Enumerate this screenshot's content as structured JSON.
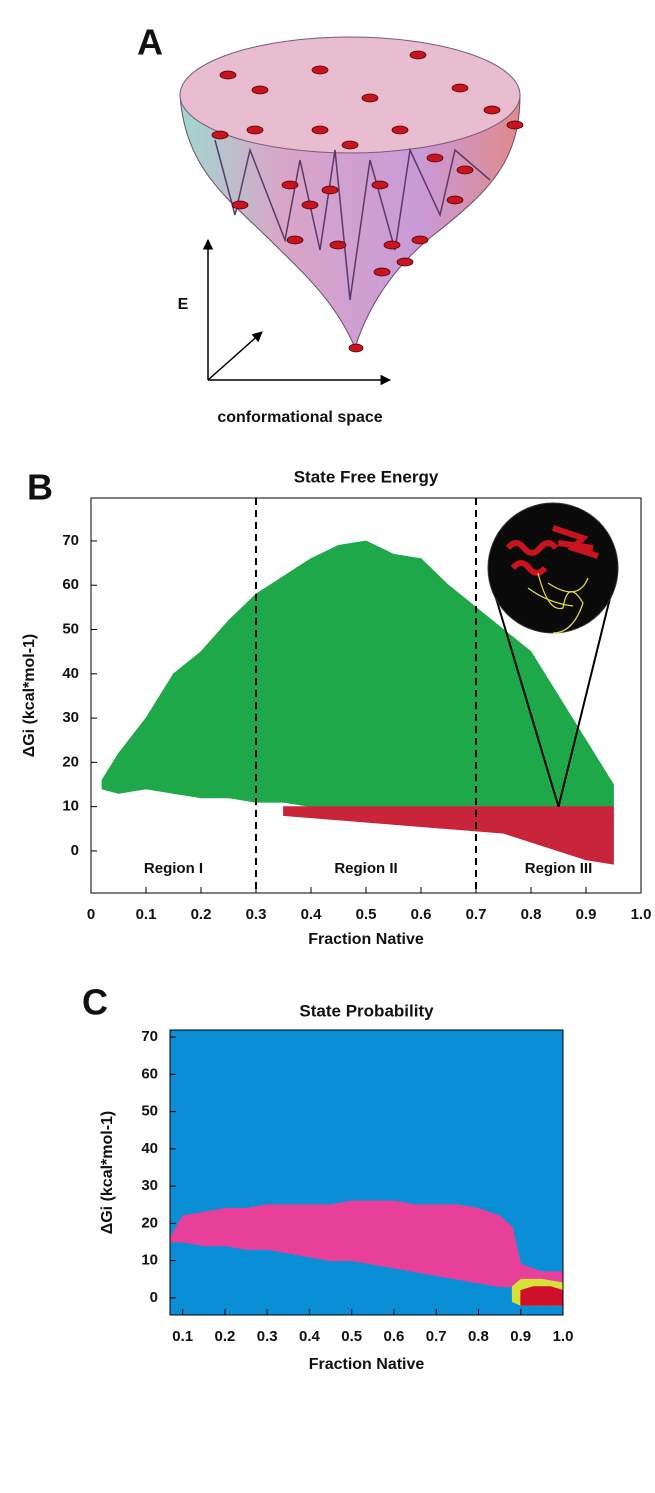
{
  "panel_a": {
    "label": "A",
    "y_label": "E",
    "x_label": "conformational space"
  },
  "chart_data": [
    {
      "type": "range",
      "panel": "B",
      "title": "State Free Energy",
      "xlabel": "Fraction Native",
      "ylabel": "ΔGi (kcal*mol-1)",
      "xlim": [
        0,
        1
      ],
      "ylim": [
        -9.5,
        79.7
      ],
      "xticks": [
        0,
        0.1,
        0.2,
        0.3,
        0.4,
        0.5,
        0.6,
        0.7,
        0.8,
        0.9,
        {
          "value": 1,
          "label": "1.0"
        }
      ],
      "yticks": [
        0,
        10,
        20,
        30,
        40,
        50,
        60,
        70
      ],
      "vlines": [
        0.3,
        0.7
      ],
      "regions": [
        "Region I",
        "Region II",
        "Region III"
      ],
      "inset_target": {
        "x": 0.85,
        "y": 10
      },
      "series": [
        {
          "color": "#1fa84a",
          "x": [
            0.02,
            0.05,
            0.1,
            0.15,
            0.2,
            0.25,
            0.3,
            0.35,
            0.4,
            0.45,
            0.5,
            0.55,
            0.6,
            0.65,
            0.7,
            0.75,
            0.8,
            0.85,
            0.9,
            0.95
          ],
          "high": [
            16,
            22,
            30,
            40,
            45,
            52,
            58,
            62,
            66,
            69,
            70,
            67,
            66,
            60,
            55,
            50,
            45,
            35,
            25,
            15
          ],
          "low": [
            14,
            13,
            14,
            13,
            12,
            12,
            11,
            11,
            10,
            10,
            10,
            10,
            10,
            10,
            10,
            10,
            10,
            10,
            10,
            10
          ]
        },
        {
          "color": "#c8243a",
          "x": [
            0.35,
            0.45,
            0.55,
            0.65,
            0.75,
            0.8,
            0.85,
            0.9,
            0.95
          ],
          "high": [
            10,
            10,
            10,
            10,
            10,
            10,
            10,
            10,
            10
          ],
          "low": [
            8,
            7,
            6,
            5,
            4,
            2,
            0,
            -2,
            -3
          ]
        }
      ]
    },
    {
      "type": "range",
      "panel": "C",
      "title": "State Probability",
      "xlabel": "Fraction Native",
      "ylabel": "ΔGi (kcal*mol-1)",
      "xlim": [
        0.07,
        1
      ],
      "ylim": [
        -4.6,
        71.9
      ],
      "background": "#0a8fd6",
      "xticks": [
        0.1,
        0.2,
        0.3,
        0.4,
        0.5,
        0.6,
        0.7,
        0.8,
        0.9,
        {
          "value": 1,
          "label": "1.0"
        }
      ],
      "yticks": [
        0,
        10,
        20,
        30,
        40,
        50,
        60,
        70
      ],
      "series": [
        {
          "color": "#e8409a",
          "x": [
            0.07,
            0.1,
            0.15,
            0.2,
            0.25,
            0.3,
            0.35,
            0.4,
            0.45,
            0.5,
            0.55,
            0.6,
            0.65,
            0.7,
            0.75,
            0.8,
            0.85,
            0.88,
            0.9,
            0.95,
            1
          ],
          "high": [
            16,
            22,
            23,
            24,
            24,
            25,
            25,
            25,
            25,
            26,
            26,
            26,
            25,
            25,
            25,
            24,
            22,
            19,
            9,
            7,
            7
          ],
          "low": [
            15,
            15,
            14,
            14,
            13,
            13,
            12,
            11,
            10,
            10,
            9,
            8,
            7,
            6,
            5,
            4,
            3,
            3,
            3,
            3,
            3
          ]
        },
        {
          "color": "#d8e03a",
          "x": [
            0.88,
            0.9,
            0.95,
            1
          ],
          "high": [
            3,
            5,
            5,
            4
          ],
          "low": [
            -1,
            -2,
            -2,
            -2
          ]
        },
        {
          "color": "#d0102a",
          "x": [
            0.9,
            0.93,
            0.97,
            1
          ],
          "high": [
            2,
            3,
            3,
            2
          ],
          "low": [
            -2,
            -2,
            -2,
            -2
          ]
        }
      ]
    }
  ]
}
